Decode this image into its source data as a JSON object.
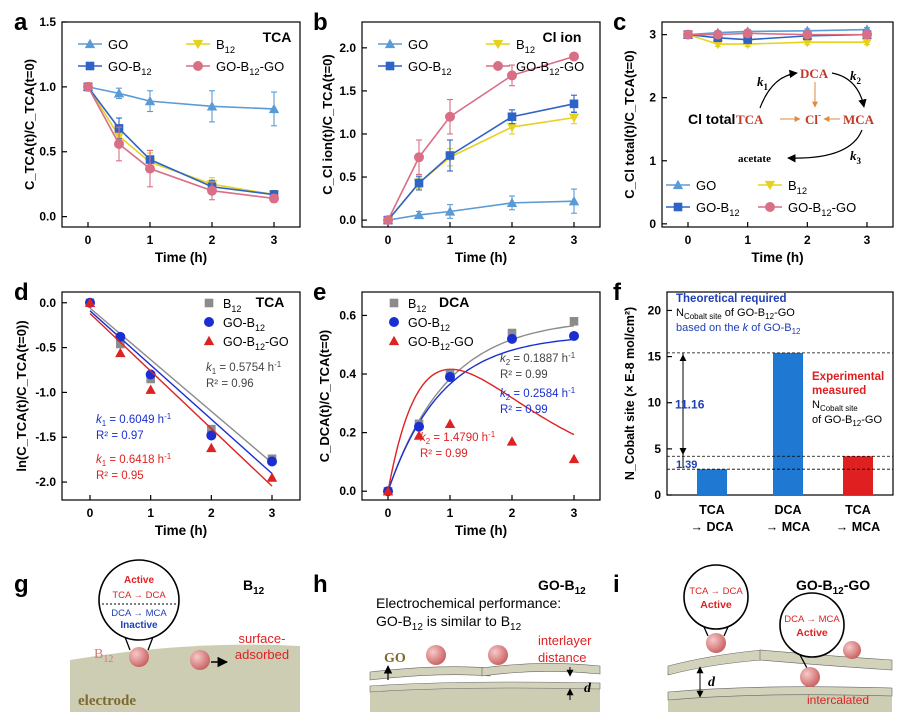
{
  "colors": {
    "blue": "#2e64c8",
    "lightblue": "#5b9bd5",
    "yellow": "#e6d21e",
    "pink": "#d96f86",
    "gray": "#8c8c8c",
    "red": "#dd2222",
    "darkblue": "#1f3fb5",
    "bar_blue": "#1f78d1",
    "bar_red": "#e02020",
    "tan": "#ccccb3",
    "ball": "#dd8a8a"
  },
  "labels": {
    "a": "a",
    "b": "b",
    "c": "c",
    "d": "d",
    "e": "e",
    "f": "f",
    "g": "g",
    "h": "h",
    "i": "i"
  },
  "chart_data": [
    {
      "panel": "a",
      "type": "line",
      "title": "TCA",
      "xlabel": "Time (h)",
      "ylabel": "C_TCA(t)/C_TCA(t=0)",
      "x": [
        0,
        0.5,
        1,
        2,
        3
      ],
      "xticks": [
        "0",
        "1",
        "2",
        "3"
      ],
      "yticks": [
        "0.0",
        "0.5",
        "1.0",
        "1.5"
      ],
      "ylim": [
        -0.08,
        1.5
      ],
      "series": [
        {
          "name": "GO",
          "values": [
            1.0,
            0.95,
            0.89,
            0.85,
            0.83
          ],
          "err": [
            0.03,
            0.04,
            0.08,
            0.12,
            0.13
          ]
        },
        {
          "name": "B12",
          "values": [
            1.0,
            0.62,
            0.42,
            0.25,
            0.17
          ],
          "err": [
            0.03,
            0.06,
            0.07,
            0.05,
            0.03
          ]
        },
        {
          "name": "GO-B12",
          "values": [
            1.0,
            0.68,
            0.44,
            0.23,
            0.17
          ],
          "err": [
            0.03,
            0.08,
            0.07,
            0.05,
            0.03
          ]
        },
        {
          "name": "GO-B12-GO",
          "values": [
            1.0,
            0.56,
            0.37,
            0.2,
            0.14
          ],
          "err": [
            0.03,
            0.13,
            0.14,
            0.07,
            0.03
          ]
        }
      ],
      "legend": [
        {
          "name": "GO",
          "sub": ""
        },
        {
          "name": "B",
          "sub": "12"
        },
        {
          "name": "GO-B",
          "sub": "12"
        },
        {
          "name": "GO-B",
          "sub": "12",
          "tail": "-GO"
        }
      ]
    },
    {
      "panel": "b",
      "type": "line",
      "title": "Cl ion",
      "xlabel": "Time (h)",
      "ylabel": "C_Cl ion(t)/C_TCA(t=0)",
      "x": [
        0,
        0.5,
        1,
        2,
        3
      ],
      "xticks": [
        "0",
        "1",
        "2",
        "3"
      ],
      "yticks": [
        "0.0",
        "0.5",
        "1.0",
        "1.5",
        "2.0"
      ],
      "ylim": [
        -0.08,
        2.3
      ],
      "series": [
        {
          "name": "GO",
          "values": [
            0.0,
            0.06,
            0.1,
            0.2,
            0.22
          ],
          "err": [
            0.02,
            0.04,
            0.08,
            0.08,
            0.14
          ]
        },
        {
          "name": "B12",
          "values": [
            0.0,
            0.43,
            0.73,
            1.08,
            1.19
          ],
          "err": [
            0.02,
            0.06,
            0.1,
            0.08,
            0.07
          ]
        },
        {
          "name": "GO-B12",
          "values": [
            0.0,
            0.43,
            0.75,
            1.2,
            1.35
          ],
          "err": [
            0.02,
            0.08,
            0.18,
            0.08,
            0.1
          ]
        },
        {
          "name": "GO-B12-GO",
          "values": [
            0.0,
            0.73,
            1.2,
            1.68,
            1.9
          ],
          "err": [
            0.02,
            0.2,
            0.2,
            0.12,
            0.03
          ]
        }
      ],
      "legend": [
        {
          "name": "GO",
          "sub": ""
        },
        {
          "name": "B",
          "sub": "12"
        },
        {
          "name": "GO-B",
          "sub": "12"
        },
        {
          "name": "GO-B",
          "sub": "12",
          "tail": "-GO"
        }
      ]
    },
    {
      "panel": "c",
      "type": "line",
      "title": "Cl total",
      "xlabel": "Time (h)",
      "ylabel": "C_Cl total(t)/C_TCA(t=0)",
      "x": [
        0,
        0.5,
        1,
        2,
        3
      ],
      "xticks": [
        "0",
        "1",
        "2",
        "3"
      ],
      "yticks": [
        "0",
        "1",
        "2",
        "3"
      ],
      "ylim": [
        -0.05,
        3.2
      ],
      "series": [
        {
          "name": "GO",
          "values": [
            3.0,
            3.03,
            3.05,
            3.06,
            3.08
          ],
          "err": [
            0.03,
            0.03,
            0.03,
            0.03,
            0.03
          ]
        },
        {
          "name": "B12",
          "values": [
            3.0,
            2.85,
            2.85,
            2.88,
            2.88
          ],
          "err": [
            0.03,
            0.04,
            0.04,
            0.04,
            0.04
          ]
        },
        {
          "name": "GO-B12",
          "values": [
            3.0,
            2.95,
            2.92,
            2.98,
            3.0
          ],
          "err": [
            0.03,
            0.04,
            0.05,
            0.04,
            0.04
          ]
        },
        {
          "name": "GO-B12-GO",
          "values": [
            3.0,
            3.0,
            3.02,
            3.0,
            3.0
          ],
          "err": [
            0.03,
            0.04,
            0.04,
            0.04,
            0.04
          ]
        }
      ],
      "legend": [
        {
          "name": "GO",
          "sub": ""
        },
        {
          "name": "B",
          "sub": "12"
        },
        {
          "name": "GO-B",
          "sub": "12"
        },
        {
          "name": "GO-B",
          "sub": "12",
          "tail": "-GO"
        }
      ],
      "scheme": {
        "tca": "TCA",
        "dca": "DCA",
        "mca": "MCA",
        "cl": "Cl",
        "clsup": "-",
        "acetate": "acetate",
        "k1": "k",
        "k1sub": "1",
        "k2": "k",
        "k2sub": "2",
        "k3": "k",
        "k3sub": "3"
      }
    },
    {
      "panel": "d",
      "type": "scatter",
      "title": "TCA",
      "xlabel": "Time (h)",
      "ylabel": "ln(C_TCA(t)/C_TCA(t=0))",
      "x": [
        0,
        0.5,
        1,
        2,
        3
      ],
      "xticks": [
        "0",
        "1",
        "2",
        "3"
      ],
      "yticks": [
        "0.0",
        "-0.5",
        "-1.0",
        "-1.5",
        "-2.0"
      ],
      "ylim": [
        -2.2,
        0.12
      ],
      "series": [
        {
          "name": "B12",
          "values": [
            0.0,
            -0.46,
            -0.85,
            -1.41,
            -1.74
          ],
          "slope": -0.5754,
          "intercept": -0.06
        },
        {
          "name": "GO-B12",
          "values": [
            0.0,
            -0.38,
            -0.8,
            -1.48,
            -1.77
          ],
          "slope": -0.6049,
          "intercept": -0.09
        },
        {
          "name": "GO-B12-GO",
          "values": [
            0.0,
            -0.56,
            -0.97,
            -1.62,
            -1.95
          ],
          "slope": -0.6418,
          "intercept": -0.12
        }
      ],
      "legend": [
        {
          "name": "B",
          "sub": "12"
        },
        {
          "name": "GO-B",
          "sub": "12"
        },
        {
          "name": "GO-B",
          "sub": "12",
          "tail": "-GO"
        }
      ],
      "annotations": [
        {
          "k": "0.5754 h",
          "r2": "R² = 0.96",
          "kname": "k",
          "ksub": "1",
          "unit": "-1"
        },
        {
          "k": "0.6049 h",
          "r2": "R² = 0.97",
          "kname": "k",
          "ksub": "1",
          "unit": "-1"
        },
        {
          "k": "0.6418 h",
          "r2": "R² = 0.95",
          "kname": "k",
          "ksub": "1",
          "unit": "-1"
        }
      ]
    },
    {
      "panel": "e",
      "type": "scatter",
      "title": "DCA",
      "xlabel": "Time (h)",
      "ylabel": "C_DCA(t)/C_TCA(t=0)",
      "x": [
        0,
        0.5,
        1,
        2,
        3
      ],
      "xticks": [
        "0",
        "1",
        "2",
        "3"
      ],
      "yticks": [
        "0.0",
        "0.2",
        "0.4",
        "0.6"
      ],
      "ylim": [
        -0.03,
        0.68
      ],
      "series": [
        {
          "name": "B12",
          "values": [
            0.0,
            0.23,
            0.4,
            0.54,
            0.58
          ]
        },
        {
          "name": "GO-B12",
          "values": [
            0.0,
            0.22,
            0.39,
            0.52,
            0.53
          ]
        },
        {
          "name": "GO-B12-GO",
          "values": [
            0.0,
            0.19,
            0.23,
            0.17,
            0.11
          ]
        }
      ],
      "legend": [
        {
          "name": "B",
          "sub": "12"
        },
        {
          "name": "GO-B",
          "sub": "12"
        },
        {
          "name": "GO-B",
          "sub": "12",
          "tail": "-GO"
        }
      ],
      "annotations": [
        {
          "k": "0.1887 h",
          "r2": "R² = 0.99",
          "kname": "k",
          "ksub": "2",
          "unit": "-1"
        },
        {
          "k": "0.2584 h",
          "r2": "R² = 0.99",
          "kname": "k",
          "ksub": "2",
          "unit": "-1"
        },
        {
          "k": "1.4790 h",
          "r2": "R² = 0.99",
          "kname": "k",
          "ksub": "2",
          "unit": "-1"
        }
      ]
    },
    {
      "panel": "f",
      "type": "bar",
      "ylabel": "N_Cobalt site (× E-8 mol/cm²)",
      "categories": [
        [
          "TCA",
          "→ DCA"
        ],
        [
          "DCA",
          "→ MCA"
        ],
        [
          "TCA",
          "→ MCA"
        ]
      ],
      "values": [
        2.8,
        15.4,
        4.2
      ],
      "yticks": [
        "0",
        "5",
        "10",
        "15",
        "20"
      ],
      "ylim": [
        0,
        22
      ],
      "annotations": {
        "theory_title": "Theoretical required",
        "theory_l2": "N",
        "theory_l2sub": "Cobalt site",
        "theory_l2tail": " of GO-B",
        "theory_l2sub2": "12",
        "theory_l2tail2": "-GO",
        "theory_l3": "based on the ",
        "theory_l3k": "k",
        "theory_l3tail": " of GO-B",
        "theory_l3sub": "12",
        "exp_title1": "Experimental",
        "exp_title2": "measured",
        "exp_l3": "N",
        "exp_l3sub": "Cobalt site",
        "exp_l4": "of GO-B",
        "exp_l4sub": "12",
        "exp_l4tail": "-GO",
        "diff1": "11.16",
        "diff2": "1.39"
      }
    }
  ],
  "schematics": {
    "g": {
      "title": "B",
      "titlesub": "12",
      "active": "Active",
      "r1": "TCA → DCA",
      "r2": "DCA → MCA",
      "inactive": "Inactive",
      "b12": "B",
      "b12sub": "12",
      "surf1": "surface-",
      "surf2": "adsorbed",
      "electrode": "electrode"
    },
    "h": {
      "title": "GO-B",
      "titlesub": "12",
      "t1": "Electrochemical performance:",
      "t2": "GO-B",
      "t2sub": "12",
      "t2tail": " is similar to B",
      "t2sub2": "12",
      "inter1": "interlayer",
      "inter2": "distance",
      "go": "GO",
      "d": "d"
    },
    "i": {
      "title": "GO-B",
      "titlesub": "12",
      "titletail": "-GO",
      "r1": "TCA → DCA",
      "a1": "Active",
      "r2": "DCA → MCA",
      "a2": "Active",
      "d": "d",
      "intercalated": "intercalated"
    }
  }
}
